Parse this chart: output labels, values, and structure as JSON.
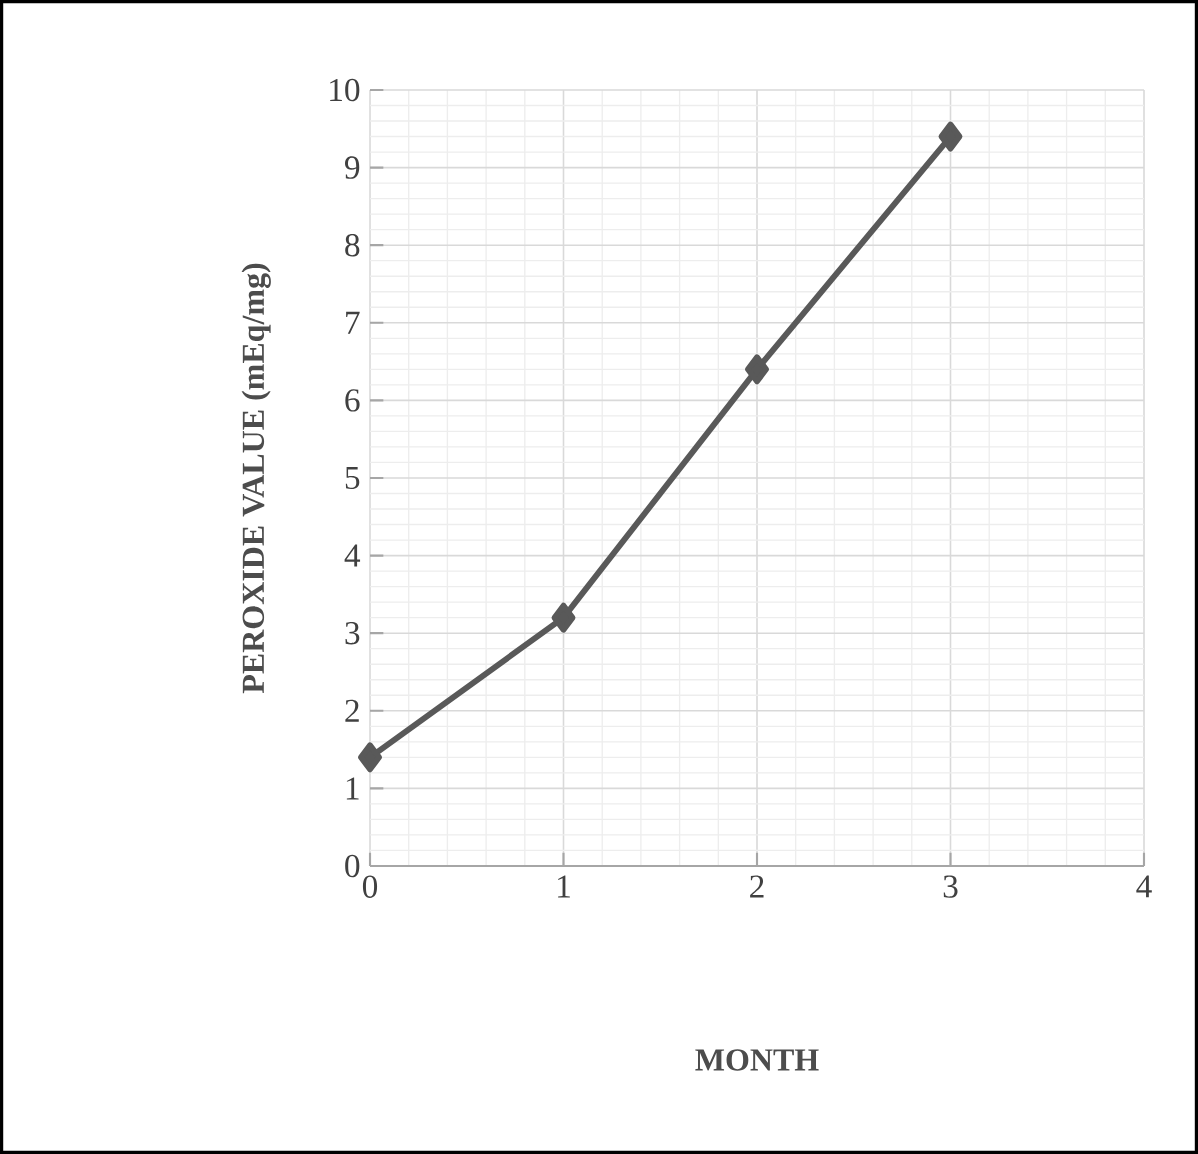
{
  "chart_data": {
    "type": "line",
    "xlabel": "MONTH",
    "ylabel": "PEROXIDE VALUE (mEq/mg)",
    "x": [
      0,
      1,
      2,
      3
    ],
    "series": [
      {
        "color": "#595959",
        "values": [
          1.4,
          3.2,
          6.4,
          9.4
        ]
      }
    ],
    "xlim": [
      0,
      4
    ],
    "xticks": [
      0,
      1,
      2,
      3,
      4
    ],
    "ylim": [
      0,
      10
    ],
    "yticks": [
      0,
      1,
      2,
      3,
      4,
      5,
      6,
      7,
      8,
      9,
      10
    ],
    "grid": true,
    "marker": "diamond",
    "line_style": "solid"
  }
}
